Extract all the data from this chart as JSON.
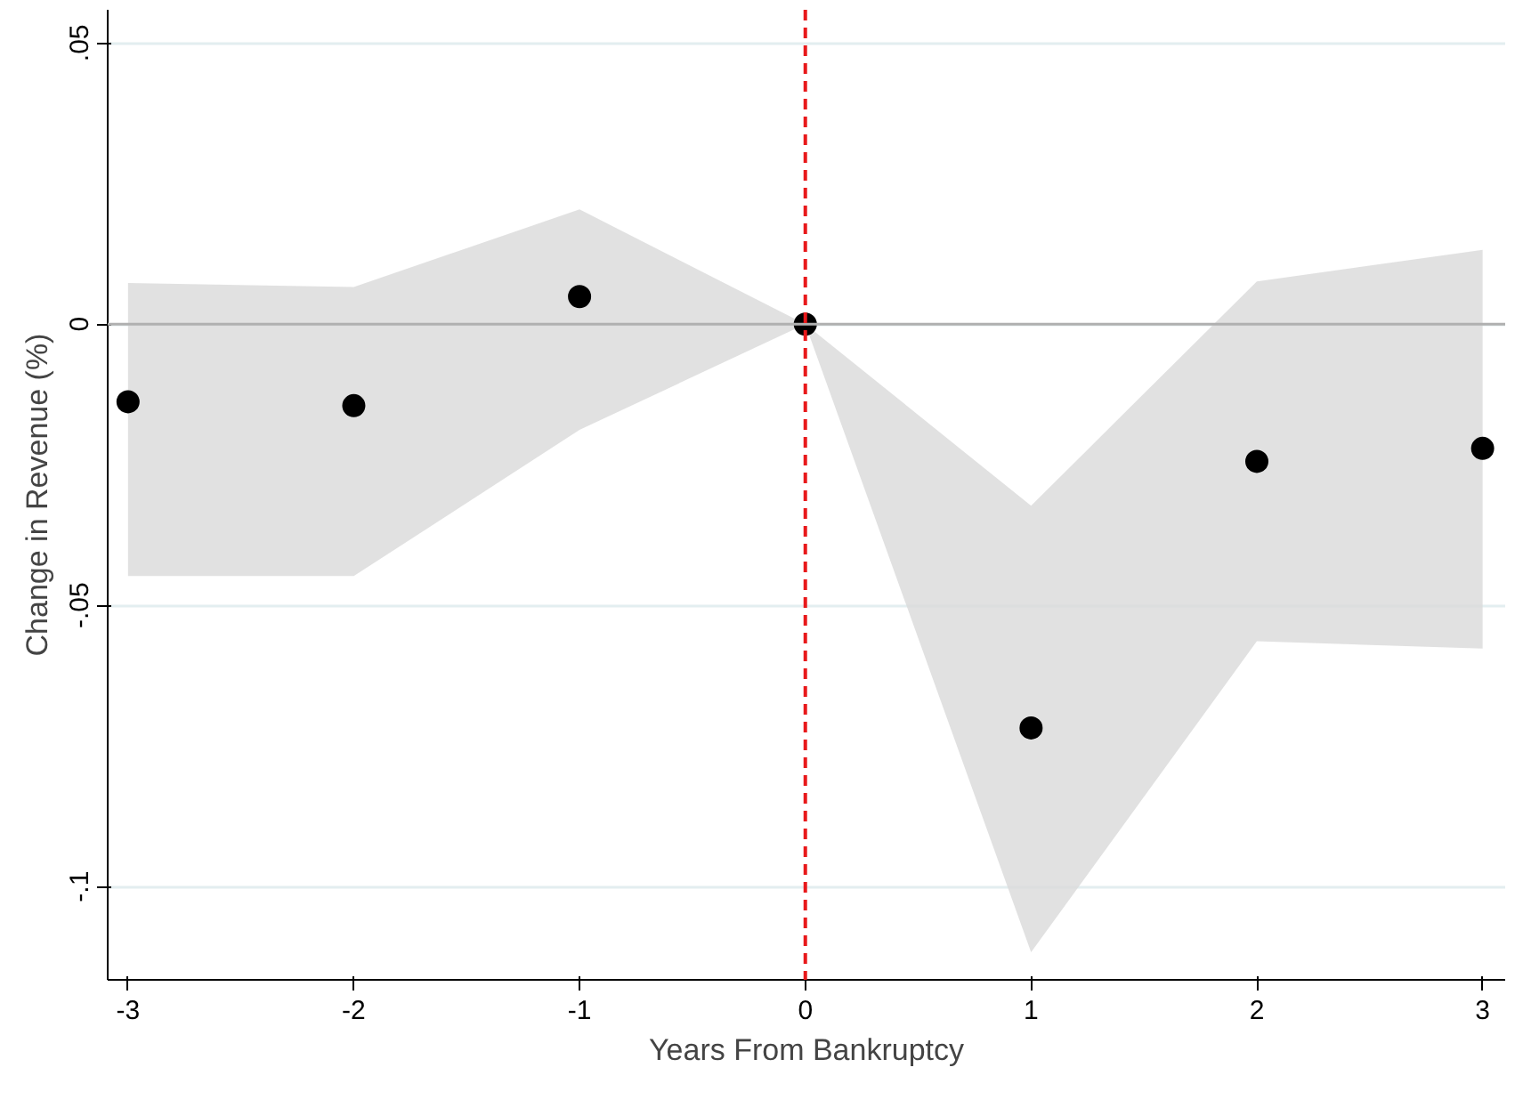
{
  "chart_data": {
    "type": "scatter",
    "xlabel": "Years From Bankruptcy",
    "ylabel": "Change in Revenue (%)",
    "x": [
      -3,
      -2,
      -1,
      0,
      1,
      2,
      3
    ],
    "series": [
      {
        "color": "#000000",
        "values": [
          -0.0138,
          -0.0145,
          0.0049,
          0,
          -0.0718,
          -0.0244,
          -0.0221
        ],
        "lower": [
          -0.0448,
          -0.0448,
          -0.0188,
          0,
          -0.1117,
          -0.0564,
          -0.0577
        ],
        "upper": [
          0.0073,
          0.0066,
          0.0204,
          0,
          -0.0323,
          0.0076,
          0.0132
        ]
      }
    ],
    "xlim": [
      -3.09,
      3.1
    ],
    "ylim": [
      -0.1166,
      0.0559
    ],
    "xticks": [
      -3,
      -2,
      -1,
      0,
      1,
      2,
      3
    ],
    "yticks": [
      {
        "value": 0.05,
        "label": ".05"
      },
      0,
      {
        "value": -0.05,
        "label": "-.05"
      },
      {
        "value": -0.1,
        "label": "-.1"
      }
    ],
    "ref_lines": [
      {
        "axis": "y",
        "value": 0,
        "color": "#b0b0b0",
        "line_style": "solid"
      },
      {
        "axis": "x",
        "value": 0,
        "color": "#e8191b",
        "line_style": "dashed"
      }
    ],
    "grid": "y",
    "marker": "circle"
  }
}
